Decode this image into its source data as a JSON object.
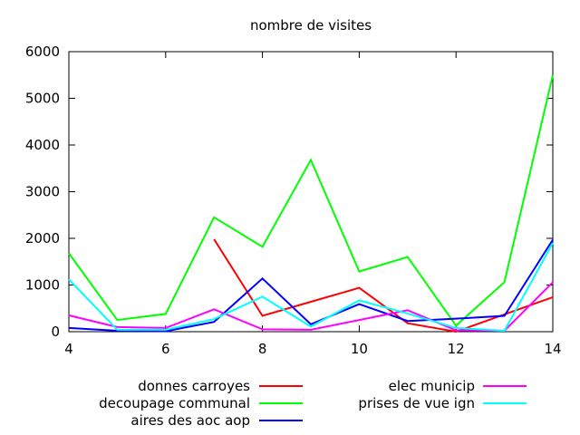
{
  "chart_data": {
    "type": "line",
    "title": "nombre de visites",
    "xlabel": "",
    "ylabel": "",
    "xlim": [
      4,
      14
    ],
    "ylim": [
      0,
      6000
    ],
    "xticks": [
      4,
      6,
      8,
      10,
      12,
      14
    ],
    "yticks": [
      0,
      1000,
      2000,
      3000,
      4000,
      5000,
      6000
    ],
    "grid": false,
    "legend_position": "bottom",
    "series": [
      {
        "name": "donnes carroyes",
        "color": "#ff0000",
        "x": [
          7,
          8,
          9,
          10,
          11,
          12,
          13,
          14
        ],
        "y": [
          1980,
          340,
          640,
          940,
          180,
          0,
          370,
          740
        ]
      },
      {
        "name": "decoupage communal",
        "color": "#00ff00",
        "x": [
          4,
          5,
          6,
          7,
          8,
          9,
          10,
          11,
          12,
          13,
          14
        ],
        "y": [
          1680,
          250,
          380,
          2450,
          1820,
          3680,
          1290,
          1600,
          130,
          1060,
          5500
        ]
      },
      {
        "name": "aires des aoc aop",
        "color": "#0000ff",
        "x": [
          4,
          5,
          6,
          7,
          8,
          9,
          10,
          11,
          12,
          13,
          14
        ],
        "y": [
          80,
          20,
          10,
          210,
          1140,
          160,
          590,
          230,
          280,
          340,
          1970
        ]
      },
      {
        "name": "elec municip",
        "color": "#ff00ff",
        "x": [
          4,
          5,
          6,
          7,
          8,
          9,
          10,
          11,
          12,
          13,
          14
        ],
        "y": [
          350,
          100,
          80,
          480,
          50,
          40,
          250,
          460,
          30,
          20,
          1060
        ]
      },
      {
        "name": "prises de vue ign",
        "color": "#00ffff",
        "x": [
          4,
          5,
          6,
          7,
          8,
          9,
          10,
          11,
          12,
          13,
          14
        ],
        "y": [
          1120,
          40,
          40,
          270,
          750,
          110,
          670,
          390,
          80,
          20,
          1900
        ]
      }
    ]
  }
}
